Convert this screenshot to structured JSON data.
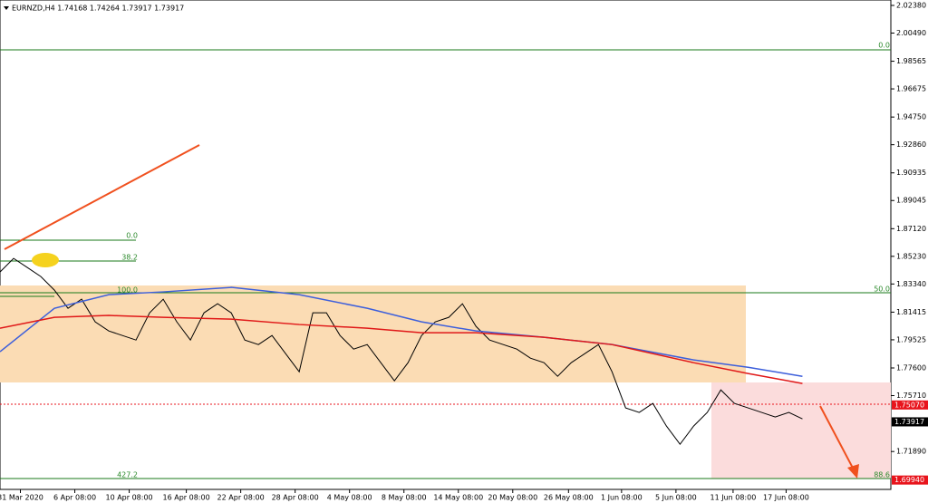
{
  "chart_data": {
    "type": "line",
    "title": "EURNZD,H4  1.74168 1.74264 1.73917 1.73917",
    "xlim": [
      0,
      65.5
    ],
    "ylim": [
      1.693,
      2.0275
    ],
    "xticks": [
      {
        "value": 1.5,
        "label": "31 Mar 2020"
      },
      {
        "value": 5.5,
        "label": "6 Apr 08:00"
      },
      {
        "value": 9.5,
        "label": "10 Apr 08:00"
      },
      {
        "value": 13.7,
        "label": "16 Apr 08:00"
      },
      {
        "value": 17.7,
        "label": "22 Apr 08:00"
      },
      {
        "value": 21.7,
        "label": "28 Apr 08:00"
      },
      {
        "value": 25.7,
        "label": "4 May 08:00"
      },
      {
        "value": 29.7,
        "label": "8 May 08:00"
      },
      {
        "value": 33.7,
        "label": "14 May 08:00"
      },
      {
        "value": 37.7,
        "label": "20 May 08:00"
      },
      {
        "value": 41.8,
        "label": "26 May 08:00"
      },
      {
        "value": 45.7,
        "label": "1 Jun 08:00"
      },
      {
        "value": 49.7,
        "label": "5 Jun 08:00"
      },
      {
        "value": 53.9,
        "label": "11 Jun 08:00"
      },
      {
        "value": 57.8,
        "label": "17 Jun 08:00"
      }
    ],
    "yticks": [
      {
        "value": 2.0238,
        "label": "2.02380"
      },
      {
        "value": 2.0049,
        "label": "2.00490"
      },
      {
        "value": 1.98565,
        "label": "1.98565"
      },
      {
        "value": 1.96675,
        "label": "1.96675"
      },
      {
        "value": 1.9475,
        "label": "1.94750"
      },
      {
        "value": 1.9286,
        "label": "1.92860"
      },
      {
        "value": 1.90935,
        "label": "1.90935"
      },
      {
        "value": 1.89045,
        "label": "1.89045"
      },
      {
        "value": 1.8712,
        "label": "1.87120"
      },
      {
        "value": 1.8523,
        "label": "1.85230"
      },
      {
        "value": 1.8334,
        "label": "1.83340"
      },
      {
        "value": 1.81415,
        "label": "1.81415"
      },
      {
        "value": 1.79525,
        "label": "1.79525"
      },
      {
        "value": 1.776,
        "label": "1.77600"
      },
      {
        "value": 1.7571,
        "label": "1.75710"
      },
      {
        "value": 1.7189,
        "label": "1.71890"
      }
    ],
    "price_markers": [
      {
        "value": 1.7507,
        "label": "1.75070",
        "color": "#e8141c"
      },
      {
        "value": 1.73917,
        "label": "1.73917",
        "color": "#000000"
      },
      {
        "value": 1.6994,
        "label": "1.69940",
        "color": "#e8141c"
      }
    ],
    "annotations": [
      "0.0",
      "38.2",
      "100.0",
      "427.2",
      "0.0",
      "50.0",
      "88.6"
    ],
    "series": [
      {
        "color": "#000000",
        "x": [
          0,
          1,
          2,
          3,
          4,
          5,
          6,
          7,
          8,
          9,
          10,
          11,
          12,
          13,
          14,
          15,
          16,
          17,
          18,
          19,
          20,
          21,
          22,
          23,
          24,
          25,
          26,
          27,
          28,
          29,
          30,
          31,
          32,
          33,
          34,
          35,
          36,
          37,
          38,
          39,
          40,
          41,
          42,
          43,
          44,
          45,
          46,
          47,
          48,
          49,
          50,
          51,
          52,
          53,
          54,
          55,
          56,
          57,
          58,
          59
        ],
        "values": [
          1.8416,
          1.8509,
          1.8447,
          1.8385,
          1.8292,
          1.8168,
          1.823,
          1.8075,
          1.8013,
          1.7982,
          1.7951,
          1.8137,
          1.823,
          1.8075,
          1.7951,
          1.8137,
          1.8199,
          1.8137,
          1.7951,
          1.792,
          1.7982,
          1.7858,
          1.7734,
          1.8137,
          1.8137,
          1.7982,
          1.7889,
          1.792,
          1.7796,
          1.7672,
          1.7796,
          1.7982,
          1.8075,
          1.8106,
          1.8199,
          1.8044,
          1.7951,
          1.792,
          1.7889,
          1.7827,
          1.7796,
          1.7703,
          1.7796,
          1.7858,
          1.792,
          1.7734,
          1.7487,
          1.7456,
          1.7518,
          1.7363,
          1.7239,
          1.7363,
          1.7456,
          1.761,
          1.7518,
          1.7487,
          1.7456,
          1.7425,
          1.7456,
          1.7412
        ]
      },
      {
        "color": "#3d5fdb",
        "x": [
          0,
          4,
          8,
          12,
          17,
          22,
          27,
          31,
          35,
          40,
          45,
          51,
          55,
          59
        ],
        "values": [
          1.7871,
          1.8168,
          1.8261,
          1.828,
          1.8311,
          1.8261,
          1.8168,
          1.8075,
          1.8013,
          1.797,
          1.792,
          1.7815,
          1.7765,
          1.7703
        ]
      },
      {
        "color": "#e01818",
        "x": [
          0,
          4,
          8,
          12,
          17,
          22,
          27,
          31,
          35,
          40,
          45,
          51,
          55,
          59
        ],
        "values": [
          1.8032,
          1.8106,
          1.8119,
          1.8106,
          1.8094,
          1.8057,
          1.8032,
          1.8001,
          1.8001,
          1.797,
          1.792,
          1.7796,
          1.7722,
          1.7654
        ]
      }
    ]
  }
}
